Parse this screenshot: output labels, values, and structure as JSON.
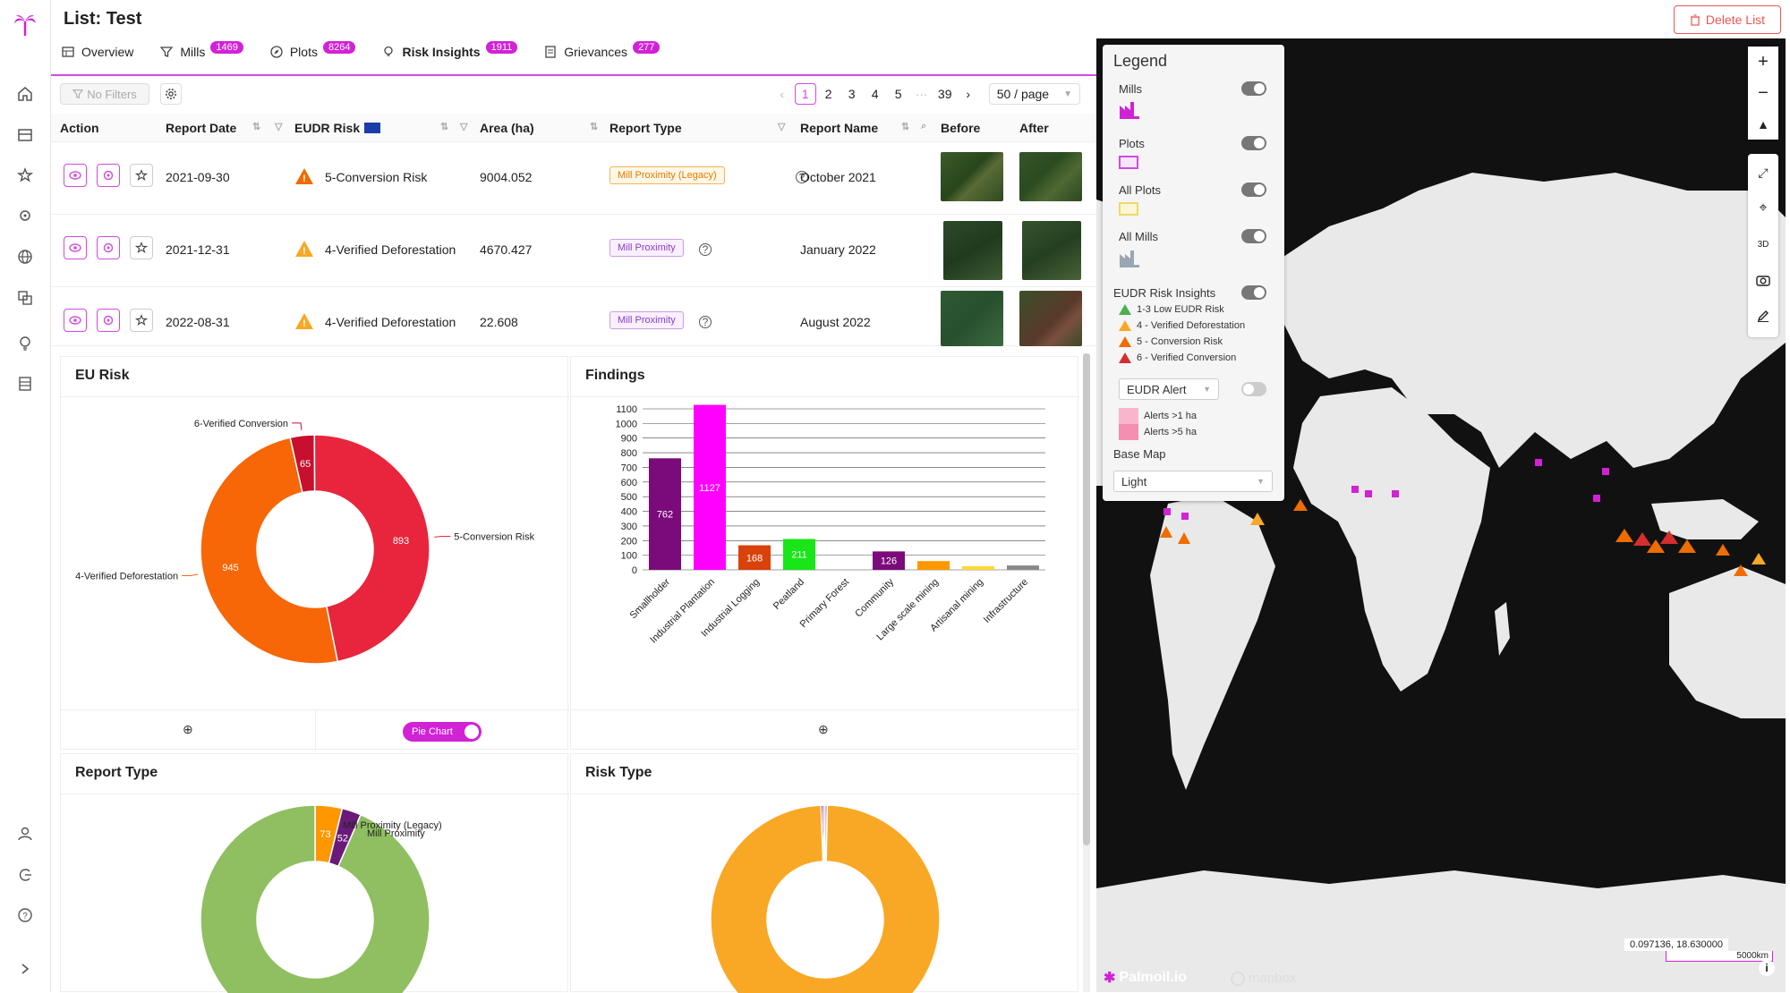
{
  "app": {
    "title": "List: Test",
    "delete_label": "Delete List"
  },
  "tabs": [
    {
      "label": "Overview",
      "badge": ""
    },
    {
      "label": "Mills",
      "badge": "1469"
    },
    {
      "label": "Plots",
      "badge": "8264"
    },
    {
      "label": "Risk Insights",
      "badge": "1911"
    },
    {
      "label": "Grievances",
      "badge": "277"
    }
  ],
  "toolbar": {
    "no_filters": "No Filters"
  },
  "pager": {
    "pages": [
      "1",
      "2",
      "3",
      "4",
      "5",
      "···",
      "39"
    ],
    "page_size": "50 / page"
  },
  "table": {
    "headers": [
      "Action",
      "Report Date",
      "EUDR Risk",
      "Area (ha)",
      "Report Type",
      "Report Name",
      "Before",
      "After"
    ],
    "rows": [
      {
        "date": "2021-09-30",
        "risk": "5-Conversion Risk",
        "risk_color": "#ef6c00",
        "area": "9004.052",
        "type": "Mill Proximity (Legacy)",
        "type_style": "orange",
        "name": "October 2021"
      },
      {
        "date": "2021-12-31",
        "risk": "4-Verified Deforestation",
        "risk_color": "#f9a825",
        "area": "4670.427",
        "type": "Mill Proximity",
        "type_style": "purple",
        "name": "January 2022"
      },
      {
        "date": "2022-08-31",
        "risk": "4-Verified Deforestation",
        "risk_color": "#f9a825",
        "area": "22.608",
        "type": "Mill Proximity",
        "type_style": "purple",
        "name": "August 2022"
      }
    ]
  },
  "panels": {
    "eu_risk": {
      "title": "EU Risk",
      "toggle_label": "Pie Chart"
    },
    "findings": {
      "title": "Findings"
    },
    "report_type": {
      "title": "Report Type"
    },
    "risk_type": {
      "title": "Risk Type"
    }
  },
  "chart_data": [
    {
      "type": "pie",
      "title": "EU Risk",
      "labels": [
        "6-Verified Conversion",
        "5-Conversion Risk",
        "4-Verified Deforestation"
      ],
      "values": [
        65,
        893,
        945
      ],
      "colors": [
        "#c8102e",
        "#e8253c",
        "#f76707"
      ]
    },
    {
      "type": "bar",
      "title": "Findings",
      "categories": [
        "Smallholder",
        "Industrial Plantation",
        "Industrial Logging",
        "Peatland",
        "Primary Forest",
        "Community",
        "Large scale mining",
        "Artisanal mining",
        "Infrastructure"
      ],
      "values": [
        762,
        1127,
        168,
        211,
        0,
        126,
        60,
        25,
        30
      ],
      "labels": [
        "762",
        "1127",
        "168",
        "211",
        "",
        "126",
        "",
        "",
        ""
      ],
      "colors": [
        "#7b0a7b",
        "#ff00ff",
        "#d9420b",
        "#19e619",
        "#2e7d32",
        "#7b0a7b",
        "#ff9800",
        "#fdd835",
        "#888888"
      ],
      "yticks": [
        0,
        100,
        200,
        300,
        400,
        500,
        600,
        700,
        800,
        900,
        1000,
        1100
      ],
      "ylim": [
        0,
        1100
      ]
    },
    {
      "type": "pie",
      "title": "Report Type",
      "labels": [
        "Mill Proximity (Legacy)",
        "Mill Proximity",
        ""
      ],
      "values": [
        73,
        52,
        1786
      ],
      "colors": [
        "#ff9800",
        "#6a1b7a",
        "#8fbf60"
      ]
    },
    {
      "type": "pie",
      "title": "Risk Type",
      "values": [
        6,
        5,
        6,
        1894
      ],
      "colors": [
        "#c2185b",
        "#7b1fa2",
        "#888888",
        "#f9a825"
      ]
    }
  ],
  "legend": {
    "title": "Legend",
    "mills": "Mills",
    "plots": "Plots",
    "all_plots": "All Plots",
    "all_mills": "All Mills",
    "eudr_insights": "EUDR Risk Insights",
    "risk_items": [
      {
        "label": "1-3 Low EUDR Risk",
        "color": "#4caf50"
      },
      {
        "label": "4 - Verified Deforestation",
        "color": "#f9a825"
      },
      {
        "label": "5 - Conversion Risk",
        "color": "#ef6c00"
      },
      {
        "label": "6 - Verified Conversion",
        "color": "#d32f2f"
      }
    ],
    "alert_select": "EUDR Alert",
    "alerts": [
      {
        "label": "Alerts >1 ha",
        "color": "#f8b6cc"
      },
      {
        "label": "Alerts >5 ha",
        "color": "#f48fb1"
      }
    ],
    "base_map_label": "Base Map",
    "base_map_value": "Light"
  },
  "map": {
    "coords": "0.097136, 18.630000",
    "scale": "5000km",
    "brand": "Palmoil.io",
    "attribution": "mapbox"
  }
}
